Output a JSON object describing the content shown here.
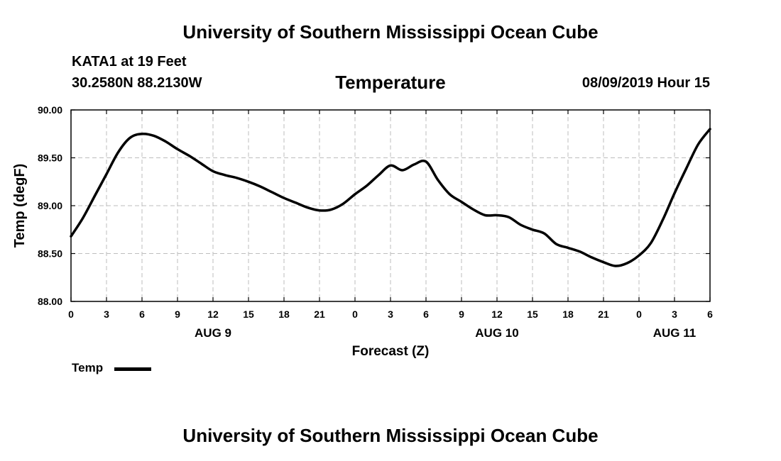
{
  "header": {
    "title": "University of Southern Mississippi Ocean Cube",
    "station": "KATA1 at 19 Feet",
    "location": "30.2580N 88.2130W",
    "variable": "Temperature",
    "datetime": "08/09/2019 Hour 15"
  },
  "footer": {
    "title": "University of Southern Mississippi Ocean Cube"
  },
  "legend": {
    "label": "Temp"
  },
  "chart_data": {
    "type": "line",
    "title": "Temperature",
    "xlabel": "Forecast (Z)",
    "ylabel": "Temp (degF)",
    "xlim": [
      0,
      54
    ],
    "ylim": [
      88.0,
      90.0
    ],
    "grid": true,
    "legend": "bottom-left",
    "x_ticks": [
      0,
      3,
      6,
      9,
      12,
      15,
      18,
      21,
      24,
      27,
      30,
      33,
      36,
      39,
      42,
      45,
      48,
      51,
      54
    ],
    "x_tick_labels": [
      "0",
      "3",
      "6",
      "9",
      "12",
      "15",
      "18",
      "21",
      "0",
      "3",
      "6",
      "9",
      "12",
      "15",
      "18",
      "21",
      "0",
      "3",
      "6"
    ],
    "y_ticks": [
      88.0,
      88.5,
      89.0,
      89.5,
      90.0
    ],
    "y_tick_labels": [
      "88.00",
      "88.50",
      "89.00",
      "89.50",
      "90.00"
    ],
    "date_labels": [
      {
        "x": 12,
        "label": "AUG 9"
      },
      {
        "x": 36,
        "label": "AUG 10"
      },
      {
        "x": 51,
        "label": "AUG 11"
      }
    ],
    "series": [
      {
        "name": "Temp",
        "color": "#000000",
        "x": [
          0,
          1,
          2,
          3,
          4,
          5,
          6,
          7,
          8,
          9,
          10,
          11,
          12,
          13,
          14,
          15,
          16,
          17,
          18,
          19,
          20,
          21,
          22,
          23,
          24,
          25,
          26,
          27,
          28,
          29,
          30,
          31,
          32,
          33,
          34,
          35,
          36,
          37,
          38,
          39,
          40,
          41,
          42,
          43,
          44,
          45,
          46,
          47,
          48,
          49,
          50,
          51,
          52,
          53,
          54
        ],
        "values": [
          88.68,
          88.87,
          89.1,
          89.33,
          89.56,
          89.71,
          89.75,
          89.73,
          89.67,
          89.59,
          89.52,
          89.44,
          89.36,
          89.32,
          89.29,
          89.25,
          89.2,
          89.14,
          89.08,
          89.03,
          88.98,
          88.95,
          88.96,
          89.02,
          89.12,
          89.21,
          89.32,
          89.42,
          89.37,
          89.43,
          89.46,
          89.27,
          89.12,
          89.04,
          88.96,
          88.9,
          88.9,
          88.88,
          88.8,
          88.75,
          88.71,
          88.6,
          88.56,
          88.52,
          88.46,
          88.41,
          88.37,
          88.4,
          88.48,
          88.61,
          88.85,
          89.13,
          89.39,
          89.64,
          89.8
        ]
      }
    ]
  }
}
